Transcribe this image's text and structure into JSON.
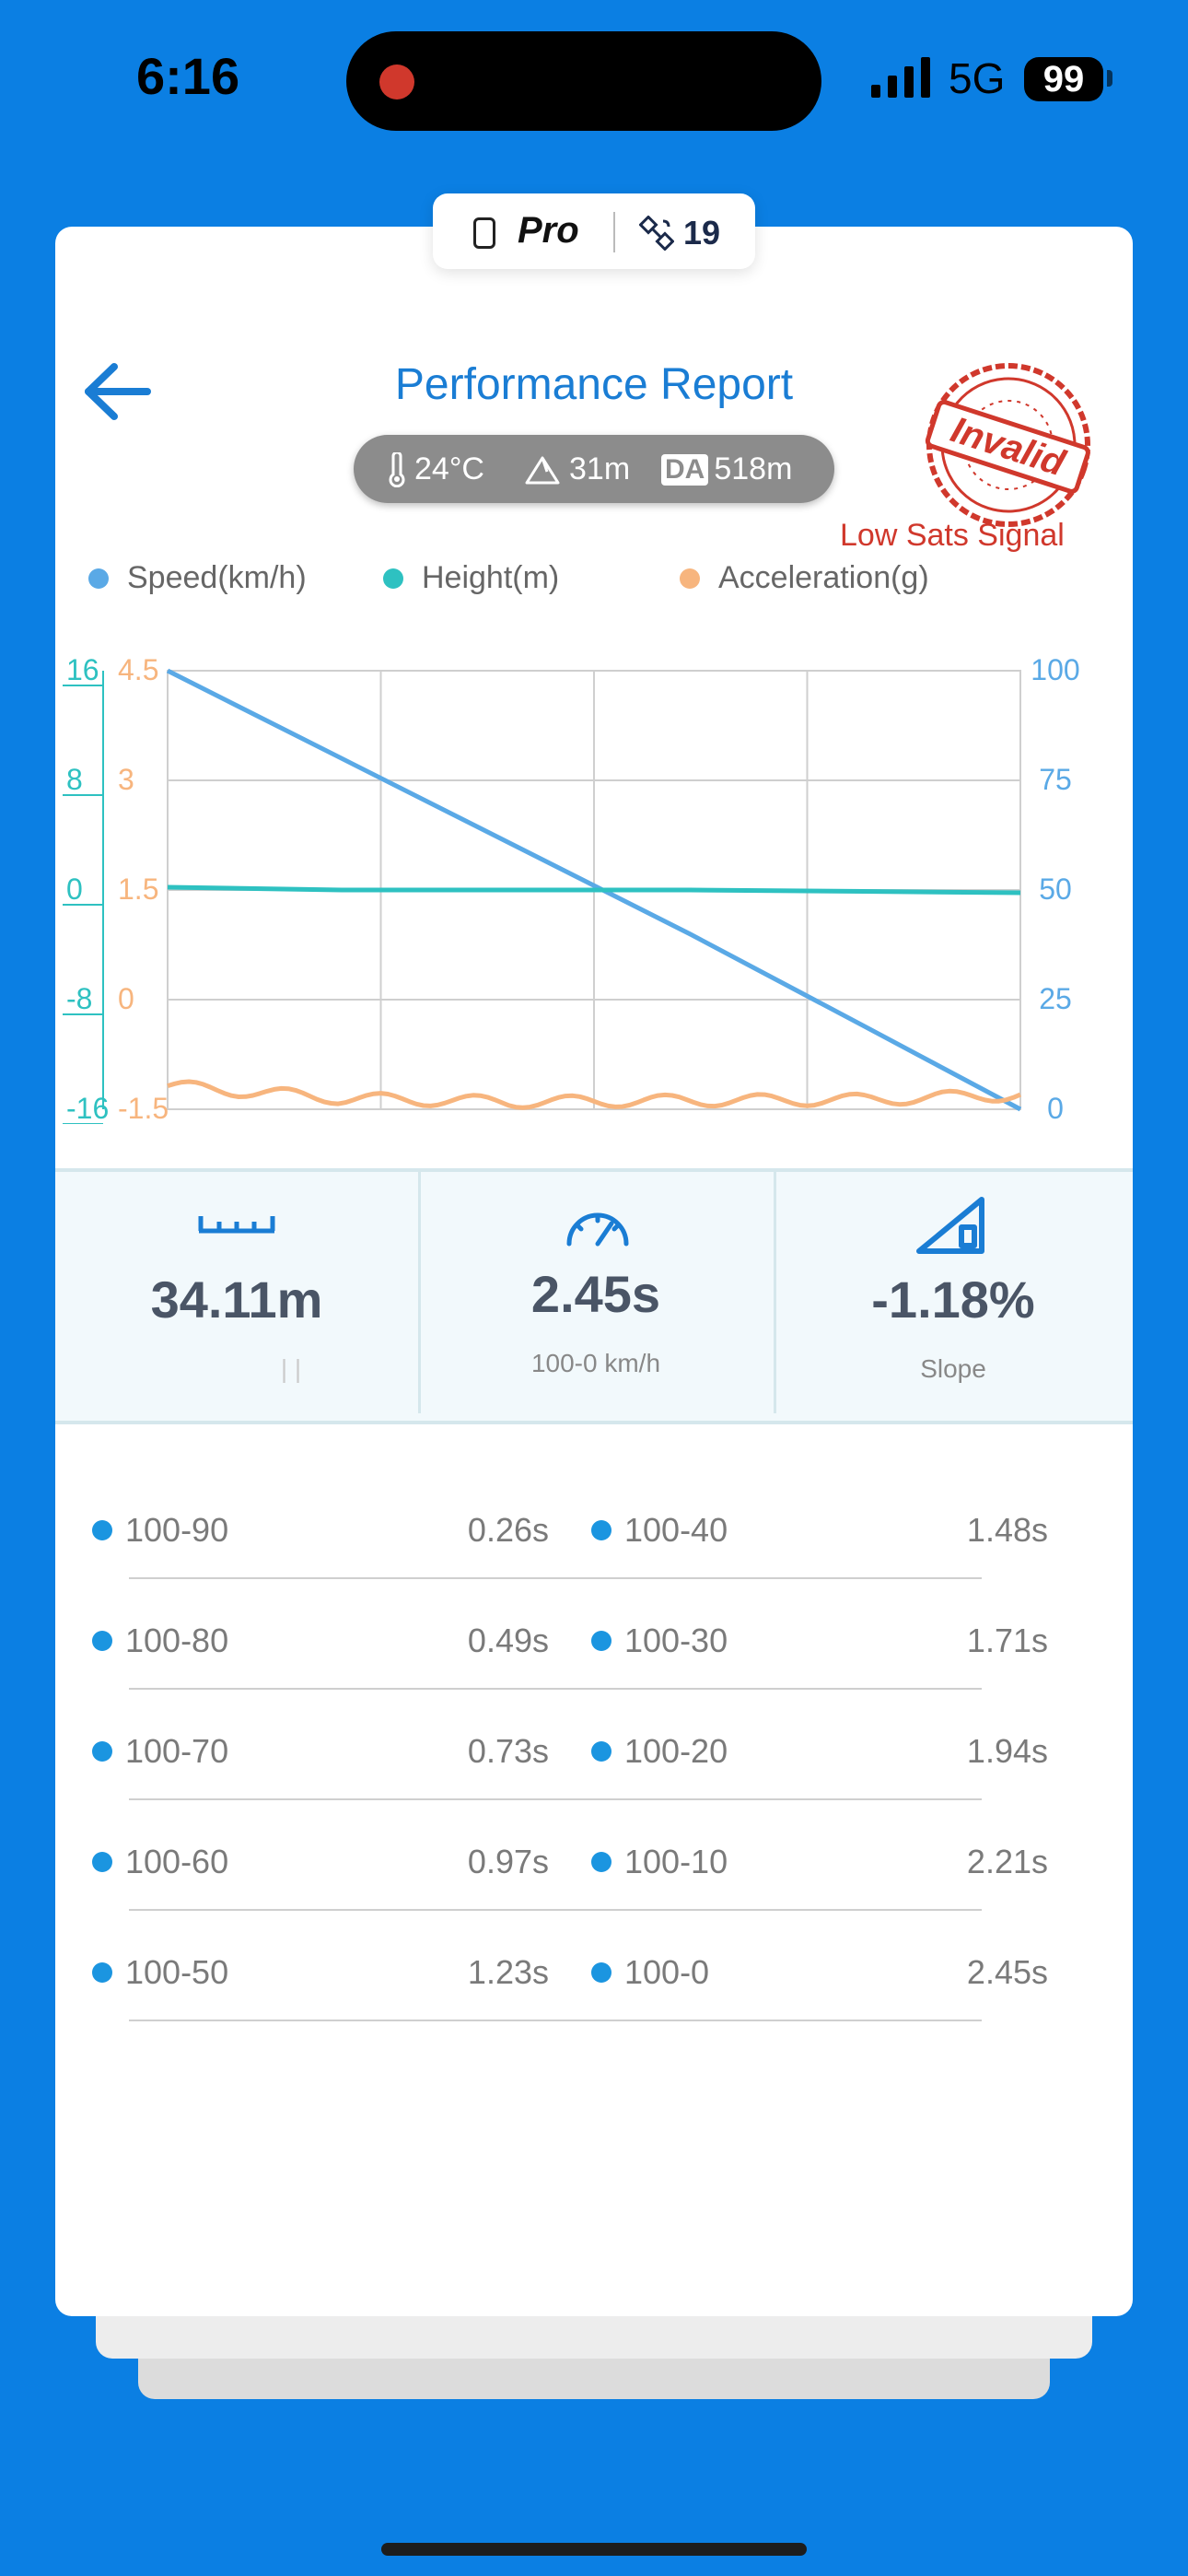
{
  "status_bar": {
    "time": "6:16",
    "network": "5G",
    "battery": "99"
  },
  "badge": {
    "device": "Pro",
    "satellites": "19"
  },
  "header": {
    "title": "Performance Report"
  },
  "conditions": {
    "temperature": "24°C",
    "altitude": "31m",
    "da_label": "DA",
    "density_altitude": "518m"
  },
  "stamp": {
    "text": "Invalid",
    "warning": "Low Sats Signal"
  },
  "colors": {
    "speed": "#5AA9E6",
    "height": "#2EC1C1",
    "acceleration": "#F7B57E",
    "accent": "#1A7DD4",
    "warning": "#D0382C"
  },
  "chart_data": {
    "type": "line",
    "legend": [
      "Speed(km/h)",
      "Height(m)",
      "Acceleration(g)"
    ],
    "x": [
      0,
      0.5,
      1.0,
      1.5,
      2.0,
      2.45
    ],
    "y_right_ticks": [
      "100",
      "75",
      "50",
      "25",
      "0"
    ],
    "y_left_height_ticks": [
      "16",
      "8",
      "0",
      "-8",
      "-16"
    ],
    "y_left_accel_ticks": [
      "4.5",
      "3",
      "1.5",
      "0",
      "-1.5"
    ],
    "ylim_speed": [
      0,
      100
    ],
    "ylim_height": [
      -16,
      16
    ],
    "ylim_acceleration": [
      -1.5,
      4.5
    ],
    "grid": true,
    "series": [
      {
        "name": "Speed(km/h)",
        "axis": "speed",
        "values": [
          100,
          80,
          60,
          40,
          19,
          0
        ]
      },
      {
        "name": "Height(m)",
        "axis": "height",
        "values": [
          0.2,
          0.0,
          0.0,
          0.0,
          -0.1,
          -0.2
        ]
      },
      {
        "name": "Acceleration(g)",
        "axis": "acceleration",
        "values": [
          -1.18,
          -1.35,
          -1.4,
          -1.38,
          -1.37,
          -1.3
        ]
      }
    ]
  },
  "metrics": {
    "distance": {
      "value": "34.11m",
      "sub": "| |"
    },
    "time": {
      "value": "2.45s",
      "sub": "100-0 km/h"
    },
    "slope": {
      "value": "-1.18%",
      "sub": "Slope"
    }
  },
  "splits": [
    {
      "label": "100-90",
      "time": "0.26s"
    },
    {
      "label": "100-80",
      "time": "0.49s"
    },
    {
      "label": "100-70",
      "time": "0.73s"
    },
    {
      "label": "100-60",
      "time": "0.97s"
    },
    {
      "label": "100-50",
      "time": "1.23s"
    },
    {
      "label": "100-40",
      "time": "1.48s"
    },
    {
      "label": "100-30",
      "time": "1.71s"
    },
    {
      "label": "100-20",
      "time": "1.94s"
    },
    {
      "label": "100-10",
      "time": "2.21s"
    },
    {
      "label": "100-0",
      "time": "2.45s"
    }
  ]
}
